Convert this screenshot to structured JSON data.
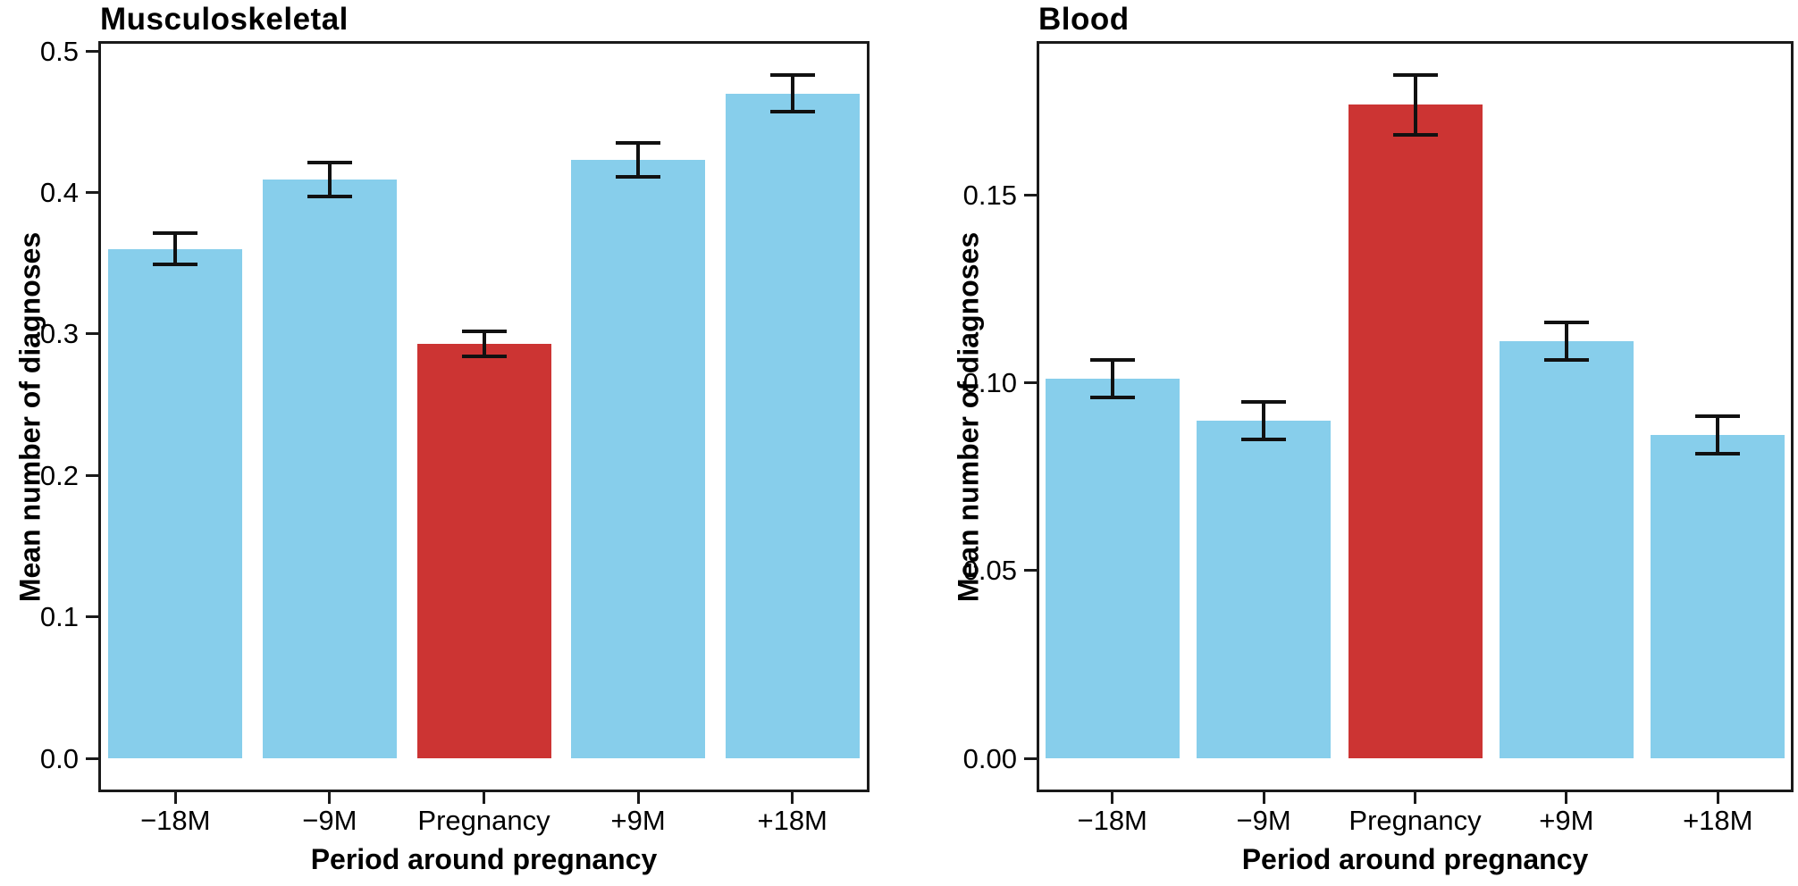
{
  "figure": {
    "background": "#ffffff",
    "description": "Two-panel bar chart of mean number of diagnoses by period around pregnancy"
  },
  "colors": {
    "bar_default": "#87CEEB",
    "bar_highlight": "#CC3433",
    "axis": "#1a1a1a",
    "error_bar": "#111111"
  },
  "chart_data": [
    {
      "type": "bar",
      "title": "Musculoskeletal",
      "xlabel": "Period around pregnancy",
      "ylabel": "Mean number of diagnoses",
      "categories": [
        "−18M",
        "−9M",
        "Pregnancy",
        "+9M",
        "+18M"
      ],
      "values": [
        0.36,
        0.409,
        0.293,
        0.423,
        0.47
      ],
      "errors": [
        0.011,
        0.012,
        0.009,
        0.012,
        0.013
      ],
      "highlight_index": 2,
      "bar_colors": [
        "#87CEEB",
        "#87CEEB",
        "#CC3433",
        "#87CEEB",
        "#87CEEB"
      ],
      "yticks": [
        {
          "label": "0.0",
          "value": 0.0
        },
        {
          "label": "0.1",
          "value": 0.1
        },
        {
          "label": "0.2",
          "value": 0.2
        },
        {
          "label": "0.3",
          "value": 0.3
        },
        {
          "label": "0.4",
          "value": 0.4
        },
        {
          "label": "0.5",
          "value": 0.5
        }
      ],
      "ylim": [
        0,
        0.507
      ],
      "grid": false,
      "legend": "none"
    },
    {
      "type": "bar",
      "title": "Blood",
      "xlabel": "Period around pregnancy",
      "ylabel": "Mean number of diagnoses",
      "categories": [
        "−18M",
        "−9M",
        "Pregnancy",
        "+9M",
        "+18M"
      ],
      "values": [
        0.101,
        0.09,
        0.174,
        0.111,
        0.086
      ],
      "errors": [
        0.005,
        0.005,
        0.008,
        0.005,
        0.005
      ],
      "highlight_index": 2,
      "bar_colors": [
        "#87CEEB",
        "#87CEEB",
        "#CC3433",
        "#87CEEB",
        "#87CEEB"
      ],
      "yticks": [
        {
          "label": "0.00",
          "value": 0.0
        },
        {
          "label": "0.05",
          "value": 0.05
        },
        {
          "label": "0.10",
          "value": 0.1
        },
        {
          "label": "0.15",
          "value": 0.15
        }
      ],
      "ylim": [
        0,
        0.191
      ],
      "grid": false,
      "legend": "none"
    }
  ]
}
